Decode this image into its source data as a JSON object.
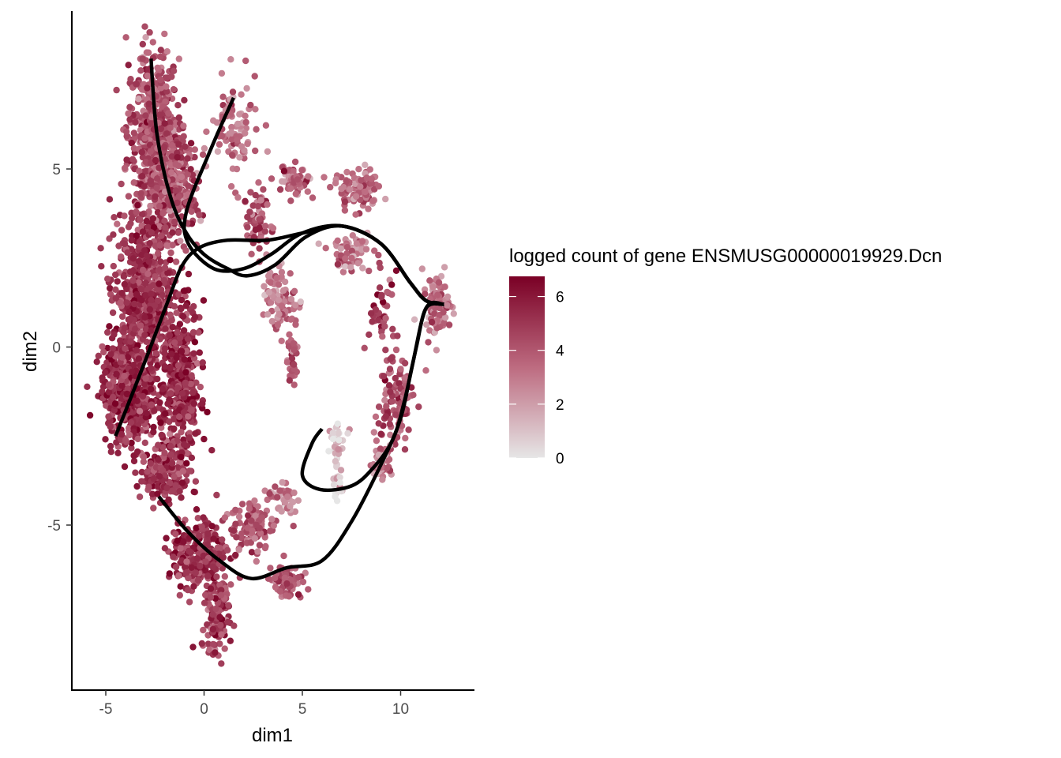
{
  "chart_data": {
    "type": "scatter",
    "title": "",
    "xlabel": "dim1",
    "ylabel": "dim2",
    "xlim": [
      -6.8,
      13.7
    ],
    "ylim": [
      -9.5,
      9.5
    ],
    "x_ticks": [
      -5,
      0,
      5,
      10
    ],
    "y_ticks": [
      -5,
      0,
      5
    ],
    "grid": false,
    "point_color_scale": {
      "title": "logged count of gene ENSMUSG00000019929.Dcn",
      "min": 0,
      "max": 6.75,
      "ticks": [
        0,
        2,
        4,
        6
      ],
      "low_color": "#e6e6e6",
      "high_color": "#7a0025"
    },
    "legend_position": "right",
    "point_clusters": [
      {
        "cx": -2.6,
        "cy": 6.0,
        "rx": 1.3,
        "ry": 2.4,
        "n": 520,
        "mean": 4.2
      },
      {
        "cx": -1.5,
        "cy": 4.5,
        "rx": 1.1,
        "ry": 1.5,
        "n": 280,
        "mean": 4.2
      },
      {
        "cx": 1.6,
        "cy": 6.0,
        "rx": 1.2,
        "ry": 1.4,
        "n": 90,
        "mean": 3.0
      },
      {
        "cx": -3.0,
        "cy": 1.5,
        "rx": 1.5,
        "ry": 2.0,
        "n": 600,
        "mean": 5.0
      },
      {
        "cx": -3.8,
        "cy": -1.3,
        "rx": 1.4,
        "ry": 1.4,
        "n": 450,
        "mean": 5.3
      },
      {
        "cx": -1.2,
        "cy": -1.0,
        "rx": 1.0,
        "ry": 2.2,
        "n": 350,
        "mean": 5.3
      },
      {
        "cx": -2.0,
        "cy": -3.5,
        "rx": 1.3,
        "ry": 0.8,
        "n": 180,
        "mean": 5.0
      },
      {
        "cx": -0.3,
        "cy": -5.8,
        "rx": 1.4,
        "ry": 1.0,
        "n": 260,
        "mean": 5.0
      },
      {
        "cx": 0.6,
        "cy": -7.6,
        "rx": 0.7,
        "ry": 1.1,
        "n": 120,
        "mean": 4.8
      },
      {
        "cx": 2.5,
        "cy": -5.0,
        "rx": 1.1,
        "ry": 0.8,
        "n": 110,
        "mean": 4.0
      },
      {
        "cx": 4.2,
        "cy": -6.6,
        "rx": 0.8,
        "ry": 0.5,
        "n": 80,
        "mean": 4.0
      },
      {
        "cx": 4.0,
        "cy": -4.3,
        "rx": 0.6,
        "ry": 0.6,
        "n": 40,
        "mean": 3.0
      },
      {
        "cx": 2.8,
        "cy": 3.5,
        "rx": 0.8,
        "ry": 0.9,
        "n": 70,
        "mean": 4.0
      },
      {
        "cx": 4.5,
        "cy": 4.7,
        "rx": 0.9,
        "ry": 0.4,
        "n": 60,
        "mean": 3.5
      },
      {
        "cx": 7.8,
        "cy": 4.4,
        "rx": 1.2,
        "ry": 0.6,
        "n": 90,
        "mean": 3.5
      },
      {
        "cx": 3.9,
        "cy": 1.4,
        "rx": 0.9,
        "ry": 0.8,
        "n": 90,
        "mean": 3.0
      },
      {
        "cx": 4.5,
        "cy": -0.2,
        "rx": 0.3,
        "ry": 0.9,
        "n": 35,
        "mean": 4.0
      },
      {
        "cx": 7.5,
        "cy": 2.6,
        "rx": 1.1,
        "ry": 0.5,
        "n": 60,
        "mean": 3.0
      },
      {
        "cx": 11.8,
        "cy": 1.2,
        "rx": 0.7,
        "ry": 0.9,
        "n": 90,
        "mean": 3.2
      },
      {
        "cx": 9.8,
        "cy": -1.5,
        "rx": 0.9,
        "ry": 1.4,
        "n": 110,
        "mean": 4.2
      },
      {
        "cx": 9.0,
        "cy": -3.2,
        "rx": 0.7,
        "ry": 0.5,
        "n": 50,
        "mean": 3.0
      },
      {
        "cx": 6.8,
        "cy": -2.5,
        "rx": 0.4,
        "ry": 0.6,
        "n": 30,
        "mean": 1.0
      },
      {
        "cx": 6.8,
        "cy": -3.7,
        "rx": 0.2,
        "ry": 0.7,
        "n": 25,
        "mean": 0.6
      },
      {
        "cx": 9.0,
        "cy": 1.0,
        "rx": 0.8,
        "ry": 1.2,
        "n": 40,
        "mean": 5.0
      }
    ],
    "trajectories": [
      [
        [
          -2.7,
          8.1
        ],
        [
          -2.4,
          6.0
        ],
        [
          -1.7,
          4.2
        ],
        [
          -0.9,
          3.2
        ],
        [
          0.0,
          2.6
        ],
        [
          1.2,
          2.2
        ],
        [
          2.2,
          2.0
        ],
        [
          3.6,
          2.3
        ],
        [
          5.2,
          3.1
        ],
        [
          7.0,
          3.4
        ],
        [
          9.0,
          2.9
        ],
        [
          10.5,
          1.8
        ],
        [
          11.3,
          1.3
        ],
        [
          12.2,
          1.2
        ]
      ],
      [
        [
          1.5,
          7.0
        ],
        [
          0.3,
          5.5
        ],
        [
          -0.9,
          3.8
        ],
        [
          -0.8,
          2.9
        ],
        [
          0.5,
          2.2
        ],
        [
          2.0,
          2.2
        ],
        [
          3.4,
          2.6
        ],
        [
          5.0,
          3.2
        ],
        [
          7.0,
          3.4
        ],
        [
          9.0,
          2.9
        ],
        [
          10.5,
          1.8
        ],
        [
          11.3,
          1.3
        ],
        [
          12.2,
          1.2
        ]
      ],
      [
        [
          -4.5,
          -2.5
        ],
        [
          -3.0,
          -0.4
        ],
        [
          -1.9,
          1.2
        ],
        [
          -1.1,
          2.3
        ],
        [
          -0.2,
          2.8
        ],
        [
          1.2,
          3.0
        ],
        [
          3.2,
          3.0
        ],
        [
          5.0,
          3.2
        ],
        [
          7.0,
          3.4
        ],
        [
          9.0,
          2.9
        ],
        [
          10.5,
          1.8
        ],
        [
          11.3,
          1.3
        ],
        [
          12.2,
          1.2
        ]
      ],
      [
        [
          12.2,
          1.2
        ],
        [
          11.3,
          1.1
        ],
        [
          10.8,
          0.0
        ],
        [
          10.2,
          -1.5
        ],
        [
          9.6,
          -2.6
        ],
        [
          8.6,
          -3.4
        ],
        [
          7.5,
          -3.9
        ],
        [
          5.9,
          -4.0
        ],
        [
          5.0,
          -3.6
        ],
        [
          5.5,
          -2.7
        ],
        [
          6.0,
          -2.3
        ]
      ],
      [
        [
          12.2,
          1.2
        ],
        [
          11.3,
          1.1
        ],
        [
          10.6,
          -0.5
        ],
        [
          10.0,
          -2.0
        ],
        [
          9.0,
          -3.3
        ],
        [
          7.5,
          -4.9
        ],
        [
          6.0,
          -6.0
        ],
        [
          4.2,
          -6.2
        ],
        [
          2.4,
          -6.5
        ],
        [
          0.8,
          -6.0
        ],
        [
          -0.8,
          -5.2
        ],
        [
          -2.3,
          -4.2
        ]
      ]
    ]
  }
}
